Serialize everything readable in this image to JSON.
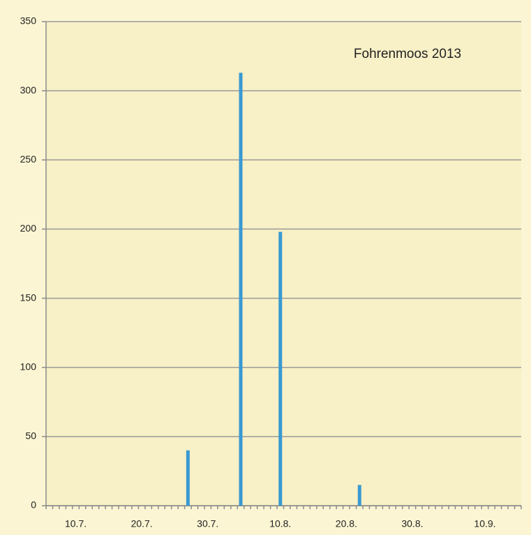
{
  "chart_data": {
    "type": "bar",
    "title": "Fohrenmoos 2013",
    "categories": [
      null,
      null,
      null,
      null,
      "10.7.",
      null,
      null,
      null,
      null,
      null,
      null,
      null,
      null,
      null,
      "20.7.",
      null,
      null,
      null,
      null,
      null,
      null,
      null,
      null,
      null,
      "30.7.",
      null,
      null,
      null,
      null,
      null,
      null,
      null,
      null,
      null,
      null,
      "10.8.",
      null,
      null,
      null,
      null,
      null,
      null,
      null,
      null,
      null,
      "20.8.",
      null,
      null,
      null,
      null,
      null,
      null,
      null,
      null,
      null,
      "30.8.",
      null,
      null,
      null,
      null,
      null,
      null,
      null,
      null,
      null,
      null,
      "10.9.",
      null,
      null,
      null,
      null,
      null
    ],
    "values": [
      null,
      null,
      null,
      null,
      null,
      null,
      null,
      null,
      null,
      null,
      null,
      null,
      null,
      null,
      null,
      null,
      null,
      null,
      null,
      null,
      null,
      40,
      null,
      null,
      null,
      null,
      null,
      null,
      null,
      313,
      null,
      null,
      null,
      null,
      null,
      198,
      null,
      null,
      null,
      null,
      null,
      null,
      null,
      null,
      null,
      null,
      null,
      15,
      null,
      null,
      null,
      null,
      null,
      null,
      null,
      null,
      null,
      null,
      null,
      null,
      null,
      null,
      null,
      null,
      null,
      null,
      null,
      null,
      null,
      null,
      null,
      null
    ],
    "color": "#3a9ad2",
    "ylim": [
      0,
      350
    ],
    "yticks": [
      0,
      50,
      100,
      150,
      200,
      250,
      300,
      350
    ],
    "grid": true
  }
}
